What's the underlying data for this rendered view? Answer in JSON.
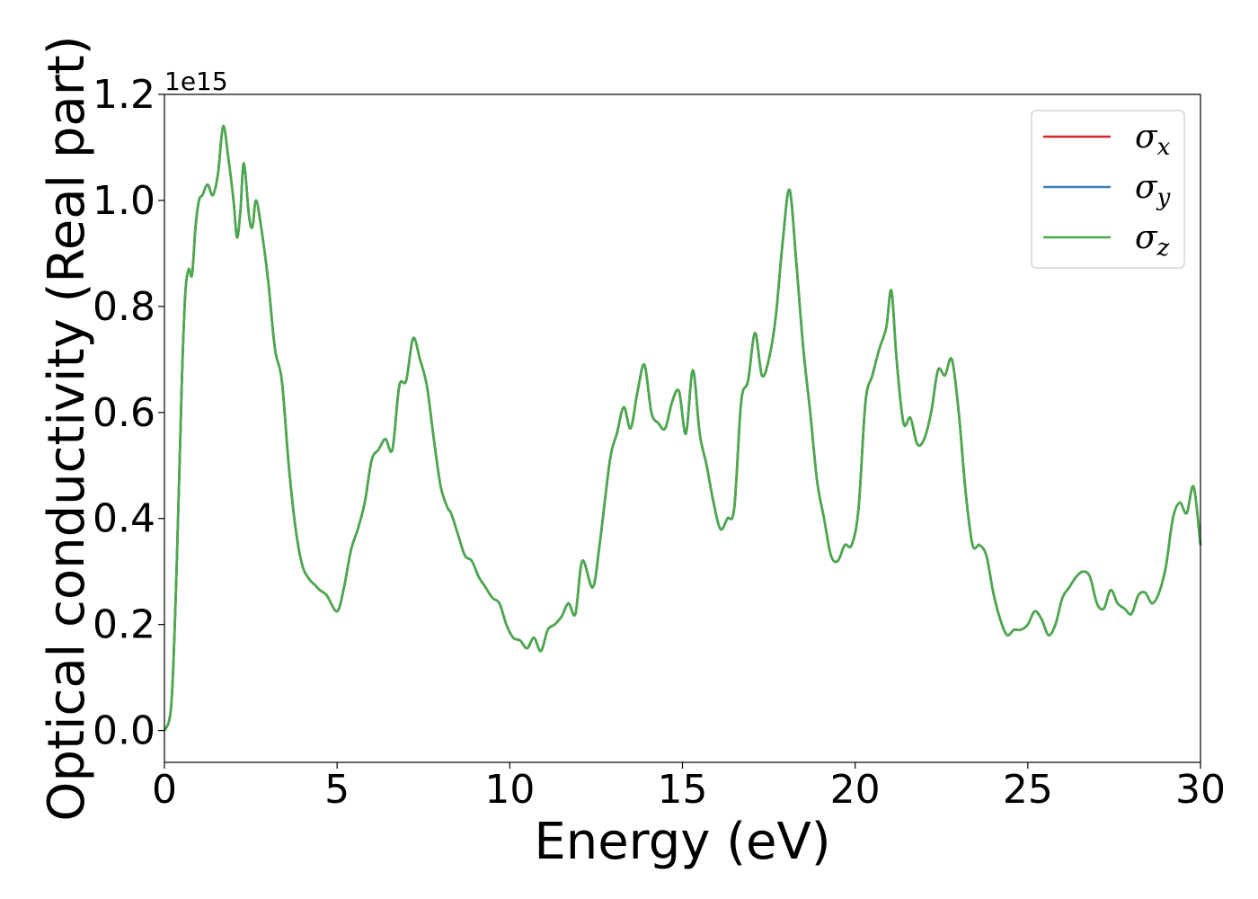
{
  "chart_data": {
    "type": "line",
    "title": "",
    "xlabel": "Energy (eV)",
    "ylabel": "Optical conductivity (Real part)",
    "y_offset_text": "1e15",
    "xlim": [
      0,
      30
    ],
    "ylim": [
      -0.06,
      1.2
    ],
    "x_ticks": [
      0,
      5,
      10,
      15,
      20,
      25,
      30
    ],
    "x_tick_labels": [
      "0",
      "5",
      "10",
      "15",
      "20",
      "25",
      "30"
    ],
    "y_ticks": [
      0.0,
      0.2,
      0.4,
      0.6,
      0.8,
      1.0,
      1.2
    ],
    "y_tick_labels": [
      "0.0",
      "0.2",
      "0.4",
      "0.6",
      "0.8",
      "1.0",
      "1.2"
    ],
    "grid": false,
    "legend_position": "top-right",
    "series": [
      {
        "name": "σx",
        "base": "σ",
        "sub": "x",
        "color": "#d62728"
      },
      {
        "name": "σy",
        "base": "σ",
        "sub": "y",
        "color": "#3a7fbf"
      },
      {
        "name": "σz",
        "base": "σ",
        "sub": "z",
        "color": "#4aaa4a"
      }
    ],
    "shared_values": {
      "x": [
        0,
        0.2,
        0.35,
        0.5,
        0.6,
        0.7,
        0.8,
        0.9,
        1.0,
        1.1,
        1.25,
        1.4,
        1.55,
        1.7,
        1.85,
        2.0,
        2.1,
        2.2,
        2.3,
        2.45,
        2.55,
        2.65,
        2.8,
        3.0,
        3.2,
        3.4,
        3.6,
        3.8,
        4.0,
        4.2,
        4.35,
        4.5,
        4.7,
        5.0,
        5.2,
        5.4,
        5.6,
        5.8,
        6.0,
        6.2,
        6.4,
        6.6,
        6.8,
        7.0,
        7.2,
        7.4,
        7.6,
        7.8,
        8.0,
        8.2,
        8.3,
        8.5,
        8.7,
        8.9,
        9.1,
        9.3,
        9.5,
        9.7,
        9.9,
        10.1,
        10.3,
        10.5,
        10.7,
        10.9,
        11.1,
        11.3,
        11.5,
        11.7,
        11.9,
        12.1,
        12.4,
        12.6,
        12.9,
        13.1,
        13.3,
        13.5,
        13.7,
        13.9,
        14.1,
        14.3,
        14.5,
        14.7,
        14.9,
        15.1,
        15.3,
        15.5,
        15.7,
        15.9,
        16.1,
        16.3,
        16.5,
        16.7,
        16.9,
        17.1,
        17.3,
        17.5,
        17.7,
        17.9,
        18.1,
        18.3,
        18.5,
        18.7,
        18.9,
        19.1,
        19.3,
        19.5,
        19.7,
        19.9,
        20.1,
        20.3,
        20.5,
        20.7,
        20.9,
        21.05,
        21.2,
        21.4,
        21.6,
        21.8,
        22.0,
        22.2,
        22.4,
        22.6,
        22.8,
        23.0,
        23.2,
        23.4,
        23.6,
        23.8,
        24.0,
        24.2,
        24.4,
        24.6,
        24.8,
        25.0,
        25.2,
        25.4,
        25.6,
        25.8,
        26.0,
        26.2,
        26.4,
        26.6,
        26.8,
        27.0,
        27.2,
        27.4,
        27.6,
        27.8,
        28.0,
        28.2,
        28.4,
        28.6,
        28.8,
        29.0,
        29.2,
        29.4,
        29.6,
        29.8,
        30.0
      ],
      "y": [
        0.0,
        0.05,
        0.3,
        0.65,
        0.82,
        0.87,
        0.86,
        0.95,
        1.0,
        1.01,
        1.03,
        1.01,
        1.05,
        1.14,
        1.08,
        1.0,
        0.93,
        0.98,
        1.07,
        0.97,
        0.95,
        1.0,
        0.95,
        0.85,
        0.72,
        0.66,
        0.5,
        0.38,
        0.31,
        0.285,
        0.275,
        0.265,
        0.255,
        0.225,
        0.27,
        0.34,
        0.38,
        0.43,
        0.51,
        0.53,
        0.55,
        0.53,
        0.65,
        0.66,
        0.74,
        0.7,
        0.65,
        0.55,
        0.46,
        0.42,
        0.41,
        0.37,
        0.33,
        0.32,
        0.29,
        0.27,
        0.25,
        0.24,
        0.2,
        0.175,
        0.17,
        0.155,
        0.175,
        0.15,
        0.19,
        0.2,
        0.215,
        0.24,
        0.22,
        0.32,
        0.27,
        0.35,
        0.51,
        0.56,
        0.61,
        0.57,
        0.64,
        0.69,
        0.6,
        0.58,
        0.57,
        0.62,
        0.64,
        0.56,
        0.68,
        0.56,
        0.5,
        0.43,
        0.38,
        0.4,
        0.42,
        0.62,
        0.66,
        0.75,
        0.67,
        0.7,
        0.78,
        0.92,
        1.02,
        0.88,
        0.72,
        0.6,
        0.47,
        0.4,
        0.33,
        0.32,
        0.35,
        0.35,
        0.42,
        0.62,
        0.67,
        0.72,
        0.76,
        0.83,
        0.7,
        0.58,
        0.59,
        0.54,
        0.55,
        0.6,
        0.68,
        0.67,
        0.7,
        0.6,
        0.45,
        0.35,
        0.35,
        0.33,
        0.26,
        0.21,
        0.18,
        0.19,
        0.19,
        0.2,
        0.225,
        0.21,
        0.18,
        0.2,
        0.25,
        0.27,
        0.29,
        0.3,
        0.29,
        0.24,
        0.23,
        0.265,
        0.24,
        0.23,
        0.22,
        0.255,
        0.26,
        0.24,
        0.26,
        0.31,
        0.4,
        0.43,
        0.41,
        0.46,
        0.35
      ]
    }
  }
}
